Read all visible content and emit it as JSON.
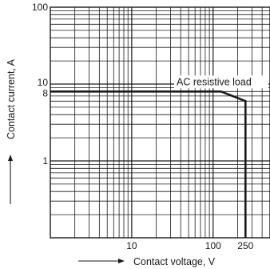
{
  "chart_data": {
    "type": "line",
    "title": "",
    "xlabel": "Contact voltage, V",
    "ylabel": "Contact current, A",
    "x_scale": "log",
    "y_scale": "log",
    "xlim": [
      1,
      500
    ],
    "ylim": [
      0.1,
      100
    ],
    "x_ticks": [
      {
        "value": 10,
        "label": "10"
      },
      {
        "value": 100,
        "label": "100"
      },
      {
        "value": 250,
        "label": "250"
      }
    ],
    "y_ticks": [
      {
        "value": 1,
        "label": "1"
      },
      {
        "value": 8,
        "label": "8"
      },
      {
        "value": 10,
        "label": "10"
      },
      {
        "value": 100,
        "label": "100"
      }
    ],
    "grid": true,
    "series": [
      {
        "name": "AC resistive load",
        "points": [
          {
            "x": 1,
            "y": 8
          },
          {
            "x": 125,
            "y": 8
          },
          {
            "x": 250,
            "y": 6
          },
          {
            "x": 250,
            "y": 0.1
          }
        ]
      }
    ],
    "annotations": [
      {
        "text": "AC resistive load",
        "x": 200,
        "y": 8.8
      }
    ]
  }
}
